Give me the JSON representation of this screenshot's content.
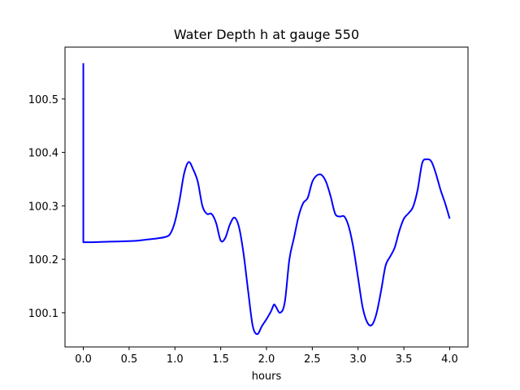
{
  "chart_data": {
    "type": "line",
    "title": "Water Depth h at gauge 550",
    "xlabel": "hours",
    "ylabel": "",
    "xlim": [
      -0.2,
      4.2
    ],
    "ylim": [
      100.036,
      100.597
    ],
    "xticks": [
      0.0,
      0.5,
      1.0,
      1.5,
      2.0,
      2.5,
      3.0,
      3.5,
      4.0
    ],
    "xtick_labels": [
      "0.0",
      "0.5",
      "1.0",
      "1.5",
      "2.0",
      "2.5",
      "3.0",
      "3.5",
      "4.0"
    ],
    "yticks": [
      100.1,
      100.2,
      100.3,
      100.4,
      100.5
    ],
    "ytick_labels": [
      "100.1",
      "100.2",
      "100.3",
      "100.4",
      "100.5"
    ],
    "grid": false,
    "line_color": "#0000ff",
    "series": [
      {
        "points": [
          [
            0.0,
            100.567
          ],
          [
            0.0,
            100.232
          ],
          [
            0.1,
            100.232
          ],
          [
            0.3,
            100.233
          ],
          [
            0.5,
            100.234
          ],
          [
            0.6,
            100.235
          ],
          [
            0.7,
            100.237
          ],
          [
            0.8,
            100.239
          ],
          [
            0.9,
            100.242
          ],
          [
            0.95,
            100.248
          ],
          [
            1.0,
            100.27
          ],
          [
            1.05,
            100.31
          ],
          [
            1.1,
            100.36
          ],
          [
            1.15,
            100.382
          ],
          [
            1.2,
            100.368
          ],
          [
            1.25,
            100.345
          ],
          [
            1.3,
            100.3
          ],
          [
            1.35,
            100.285
          ],
          [
            1.4,
            100.285
          ],
          [
            1.45,
            100.268
          ],
          [
            1.5,
            100.235
          ],
          [
            1.55,
            100.24
          ],
          [
            1.6,
            100.265
          ],
          [
            1.65,
            100.278
          ],
          [
            1.7,
            100.26
          ],
          [
            1.75,
            100.21
          ],
          [
            1.8,
            100.14
          ],
          [
            1.85,
            100.075
          ],
          [
            1.9,
            100.06
          ],
          [
            1.95,
            100.075
          ],
          [
            2.0,
            100.088
          ],
          [
            2.05,
            100.103
          ],
          [
            2.08,
            100.115
          ],
          [
            2.1,
            100.112
          ],
          [
            2.15,
            100.1
          ],
          [
            2.2,
            100.12
          ],
          [
            2.25,
            100.2
          ],
          [
            2.3,
            100.24
          ],
          [
            2.35,
            100.28
          ],
          [
            2.4,
            100.305
          ],
          [
            2.45,
            100.315
          ],
          [
            2.5,
            100.345
          ],
          [
            2.55,
            100.357
          ],
          [
            2.6,
            100.358
          ],
          [
            2.65,
            100.345
          ],
          [
            2.7,
            100.318
          ],
          [
            2.75,
            100.285
          ],
          [
            2.8,
            100.28
          ],
          [
            2.85,
            100.28
          ],
          [
            2.9,
            100.26
          ],
          [
            2.95,
            100.22
          ],
          [
            3.0,
            100.165
          ],
          [
            3.05,
            100.11
          ],
          [
            3.1,
            100.082
          ],
          [
            3.15,
            100.077
          ],
          [
            3.2,
            100.098
          ],
          [
            3.25,
            100.14
          ],
          [
            3.3,
            100.188
          ],
          [
            3.35,
            100.205
          ],
          [
            3.4,
            100.222
          ],
          [
            3.45,
            100.253
          ],
          [
            3.5,
            100.276
          ],
          [
            3.55,
            100.286
          ],
          [
            3.6,
            100.298
          ],
          [
            3.65,
            100.33
          ],
          [
            3.7,
            100.38
          ],
          [
            3.75,
            100.387
          ],
          [
            3.8,
            100.383
          ],
          [
            3.85,
            100.36
          ],
          [
            3.9,
            100.33
          ],
          [
            3.95,
            100.305
          ],
          [
            4.0,
            100.276
          ]
        ]
      }
    ]
  }
}
